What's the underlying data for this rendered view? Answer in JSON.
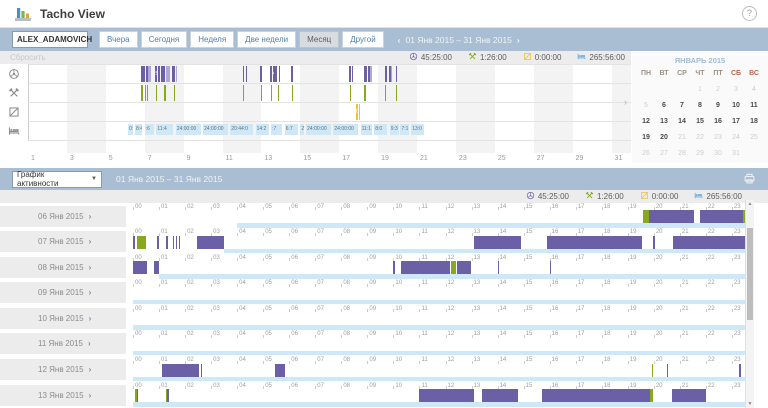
{
  "ui": {
    "caret": "▼",
    "chevron_left": "‹",
    "chevron_right": "›",
    "scroll_up": "▲",
    "scroll_down": "▼",
    "help_glyph": "?"
  },
  "header": {
    "title": "Tacho View"
  },
  "toolbar": {
    "driver_select": {
      "value": "ALEX_ADAMOVICH"
    },
    "range_buttons": [
      {
        "label": "Вчера",
        "active": false
      },
      {
        "label": "Сегодня",
        "active": false
      },
      {
        "label": "Неделя",
        "active": false
      },
      {
        "label": "Две недели",
        "active": false
      },
      {
        "label": "Месяц",
        "active": true
      },
      {
        "label": "Другой",
        "active": false
      }
    ],
    "date_range": "01 Янв 2015 – 31 Янв 2015"
  },
  "stats": [
    {
      "name": "driving-time",
      "icon": "driving-clock-icon",
      "value": "45:25:00",
      "color": "#7a6eb4"
    },
    {
      "name": "work-time",
      "icon": "work-tools-icon",
      "value": "1:26:00",
      "color": "#85a921"
    },
    {
      "name": "availability-time",
      "icon": "availability-icon",
      "value": "0:00:00",
      "color": "#eec43e"
    },
    {
      "name": "rest-time",
      "icon": "rest-bed-icon",
      "value": "265:56:00",
      "color": "#72aede"
    }
  ],
  "top_chart": {
    "reset_label": "Сбросить",
    "month_label": "январь 2015",
    "axis_days": [
      "1",
      "3",
      "5",
      "7",
      "9",
      "11",
      "13",
      "15",
      "17",
      "19",
      "21",
      "23",
      "25",
      "27",
      "29",
      "31"
    ],
    "row_icons": [
      "driving-clock-icon",
      "work-tools-icon",
      "availability-icon",
      "rest-bed-icon"
    ],
    "segments": {
      "drive": [
        [
          6.82,
          7.02
        ],
        [
          7.06,
          7.09
        ],
        [
          7.1,
          7.15
        ],
        [
          7.55,
          7.66,
          "55"
        ],
        [
          7.68,
          7.83
        ],
        [
          7.86,
          8.04
        ],
        [
          8.42,
          8.56
        ],
        [
          12.04,
          12.12
        ],
        [
          12.22,
          12.26
        ],
        [
          12.95,
          13.0
        ],
        [
          13.46,
          13.56
        ],
        [
          13.58,
          13.64,
          "4"
        ],
        [
          13.67,
          13.84
        ],
        [
          13.88,
          13.94
        ],
        [
          14.54,
          14.66
        ],
        [
          17.52,
          17.62
        ],
        [
          17.65,
          17.7
        ],
        [
          18.28,
          18.44
        ],
        [
          18.5,
          18.57
        ],
        [
          19.33,
          19.46
        ],
        [
          19.58,
          19.63
        ],
        [
          19.9,
          19.93
        ]
      ],
      "drive_light": [
        [
          7.18,
          7.34
        ],
        [
          8.08,
          8.32
        ],
        [
          8.6,
          8.68
        ],
        [
          18.6,
          18.7
        ],
        [
          19.66,
          19.74
        ]
      ],
      "work": [
        [
          6.83,
          6.85
        ],
        [
          7.01,
          7.03
        ],
        [
          7.11,
          7.13
        ],
        [
          7.56,
          7.58
        ],
        [
          8.01,
          8.03
        ],
        [
          8.52,
          8.54
        ],
        [
          12.05,
          12.07
        ],
        [
          12.96,
          12.98
        ],
        [
          13.47,
          13.49
        ],
        [
          13.85,
          13.87
        ],
        [
          14.55,
          14.57
        ],
        [
          17.53,
          17.55
        ],
        [
          18.29,
          18.31
        ],
        [
          19.34,
          19.36
        ],
        [
          19.91,
          19.93
        ]
      ],
      "avail": [
        [
          17.86,
          17.98,
          "0"
        ],
        [
          18.02,
          18.1
        ]
      ],
      "rest": [
        [
          6.15,
          6.45,
          "0:00"
        ],
        [
          6.5,
          6.9,
          "8:4"
        ],
        [
          7.0,
          7.5,
          ":6"
        ],
        [
          7.6,
          8.5,
          "11:4"
        ],
        [
          8.6,
          9.9,
          "24:00:00"
        ],
        [
          10.0,
          11.3,
          "24:00:00"
        ],
        [
          11.4,
          12.6,
          "20:44:0"
        ],
        [
          12.7,
          13.4,
          "14:2"
        ],
        [
          13.5,
          14.1,
          ":7"
        ],
        [
          14.2,
          14.9,
          "6:7"
        ],
        [
          15.0,
          15.2,
          "2"
        ],
        [
          15.3,
          16.6,
          "24:00:00"
        ],
        [
          16.7,
          18.0,
          "24:00:00"
        ],
        [
          18.1,
          18.7,
          "11:1"
        ],
        [
          18.8,
          19.5,
          "8:0"
        ],
        [
          19.6,
          20.1,
          "9:3"
        ],
        [
          20.15,
          20.6,
          "7:1"
        ],
        [
          20.7,
          21.4,
          "13:0"
        ]
      ]
    }
  },
  "calendar": {
    "title": "ЯНВАРЬ 2015",
    "weekdays": [
      "ПН",
      "ВТ",
      "СР",
      "ЧТ",
      "ПТ",
      "СБ",
      "ВС"
    ],
    "weekend_indices": [
      5,
      6
    ],
    "weeks": [
      [
        null,
        null,
        null,
        1,
        2,
        3,
        4
      ],
      [
        5,
        6,
        7,
        8,
        9,
        10,
        11
      ],
      [
        12,
        13,
        14,
        15,
        16,
        17,
        18
      ],
      [
        19,
        20,
        21,
        22,
        23,
        24,
        25
      ],
      [
        26,
        27,
        28,
        29,
        30,
        31,
        null
      ]
    ],
    "active_range": [
      6,
      20
    ]
  },
  "bottom_panel": {
    "view_select": {
      "value": "График активности"
    },
    "date_range": "01 Янв 2015 – 31 Янв 2015",
    "hours": [
      "00",
      "01",
      "02",
      "03",
      "04",
      "05",
      "06",
      "07",
      "08",
      "09",
      "10",
      "11",
      "12",
      "13",
      "14",
      "15",
      "16",
      "17",
      "18",
      "19",
      "20",
      "21",
      "22",
      "23"
    ],
    "days": [
      {
        "label": "06 Янв 2015",
        "segments": [
          [
            "rest",
            4,
            23.5
          ],
          [
            "work",
            19.6,
            19.82
          ],
          [
            "drive",
            19.82,
            21.55
          ],
          [
            "drive",
            21.78,
            23.42
          ],
          [
            "work",
            23.42,
            23.55
          ],
          [
            "drive",
            23.62,
            23.7
          ],
          [
            "drive",
            23.85,
            23.93
          ]
        ]
      },
      {
        "label": "07 Янв 2015",
        "segments": [
          [
            "rest",
            3.5,
            23.5
          ],
          [
            "drive",
            0,
            0.08
          ],
          [
            "work",
            0.15,
            0.5
          ],
          [
            "drive",
            0.93,
            1.0
          ],
          [
            "drive",
            1.28,
            1.36
          ],
          [
            "drive",
            1.52,
            1.58
          ],
          [
            "drive",
            1.65,
            1.71
          ],
          [
            "drive",
            1.76,
            1.82
          ],
          [
            "drive",
            2.45,
            3.5
          ],
          [
            "drive",
            13.1,
            14.9
          ],
          [
            "drive",
            15.9,
            19.55
          ],
          [
            "drive",
            19.98,
            20.05
          ],
          [
            "drive",
            20.75,
            23.5
          ]
        ]
      },
      {
        "label": "08 Янв 2015",
        "segments": [
          [
            "rest",
            1.0,
            23.5
          ],
          [
            "drive",
            0,
            0.55
          ],
          [
            "drive",
            0.8,
            1.0
          ],
          [
            "drive",
            10.0,
            10.07
          ],
          [
            "drive",
            10.3,
            12.2
          ],
          [
            "work",
            12.2,
            12.4
          ],
          [
            "drive",
            12.45,
            13.0
          ],
          [
            "drive",
            14.0,
            14.07
          ],
          [
            "drive",
            16.0,
            16.07
          ]
        ]
      },
      {
        "label": "09 Янв 2015",
        "segments": [
          [
            "rest",
            0,
            23.5
          ]
        ]
      },
      {
        "label": "10 Янв 2015",
        "segments": [
          [
            "rest",
            0,
            23.5
          ]
        ]
      },
      {
        "label": "11 Янв 2015",
        "segments": [
          [
            "rest",
            0,
            23.5
          ]
        ]
      },
      {
        "label": "12 Янв 2015",
        "segments": [
          [
            "rest",
            0,
            23.5
          ],
          [
            "drive",
            1.1,
            2.55
          ],
          [
            "drive",
            2.62,
            2.68
          ],
          [
            "drive",
            5.45,
            5.85
          ],
          [
            "work",
            19.93,
            20.0
          ],
          [
            "drive",
            20.5,
            20.57
          ],
          [
            "drive",
            23.28,
            23.35
          ],
          [
            "drive",
            23.8,
            23.95
          ]
        ]
      },
      {
        "label": "13 Янв 2015",
        "segments": [
          [
            "rest",
            0,
            23.5
          ],
          [
            "work",
            0.08,
            0.15
          ],
          [
            "drive",
            0.15,
            0.22
          ],
          [
            "work",
            1.25,
            1.32
          ],
          [
            "drive",
            1.32,
            1.39
          ],
          [
            "drive",
            11.0,
            13.1
          ],
          [
            "drive",
            13.4,
            14.8
          ],
          [
            "drive",
            15.7,
            19.85
          ],
          [
            "work",
            19.85,
            19.97
          ],
          [
            "drive",
            20.7,
            22.0
          ]
        ]
      }
    ]
  },
  "colors": {
    "toolbar": "#a9bed2",
    "drive": "#6b5fa6",
    "drive_light": "#b1a9d5",
    "work": "#87a81f",
    "avail": "#f2c232",
    "rest": "#cfe8f7",
    "band": "#f3f3f3",
    "row_icon": "#8f8f8f"
  }
}
